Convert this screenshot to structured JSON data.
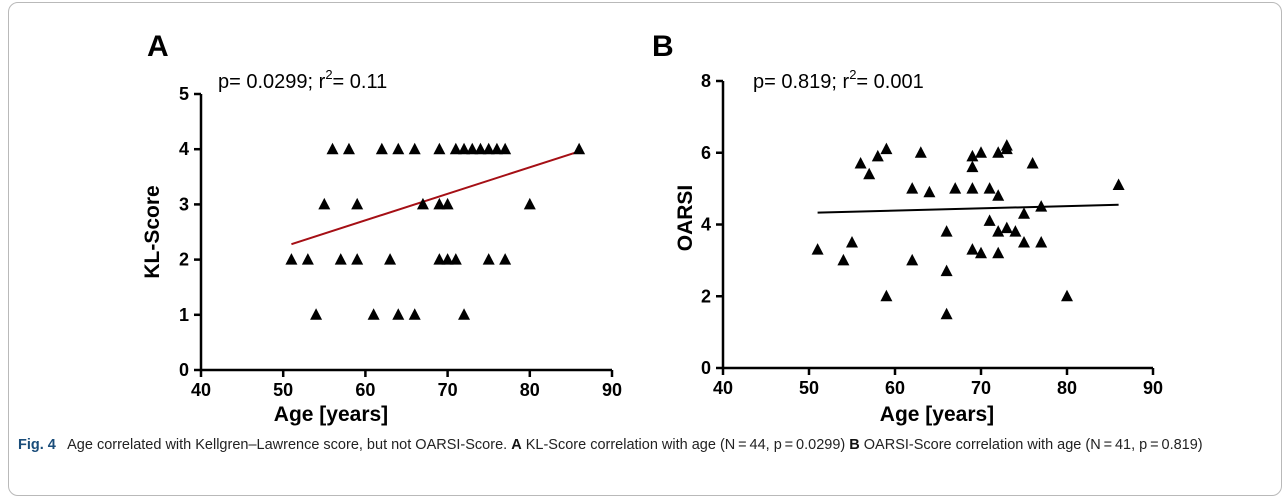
{
  "figure": {
    "caption": {
      "fig_label": "Fig. 4",
      "text_1": "Age correlated with Kellgren–Lawrence score, but not OARSI-Score.",
      "mark_a": "A",
      "text_2": "KL-Score correlation with age (N = 44, p = 0.0299)",
      "mark_b": "B",
      "text_3": "OARSI-Score correlation with age (N = 41, p = 0.819)"
    }
  },
  "chart_data": [
    {
      "panel": "A",
      "type": "scatter",
      "xlabel": "Age [years]",
      "ylabel": "KL-Score",
      "xlim": [
        40,
        90
      ],
      "ylim": [
        0,
        5
      ],
      "xticks": [
        40,
        50,
        60,
        70,
        80,
        90
      ],
      "yticks": [
        0,
        1,
        2,
        3,
        4,
        5
      ],
      "grid": false,
      "marker": "triangle",
      "annotation": {
        "p_text": "p= 0.0299; r",
        "sup": "2",
        "r2_text": "= 0.11"
      },
      "points": [
        [
          51,
          2
        ],
        [
          53,
          2
        ],
        [
          54,
          1
        ],
        [
          55,
          3
        ],
        [
          56,
          4
        ],
        [
          57,
          2
        ],
        [
          58,
          4
        ],
        [
          59,
          3
        ],
        [
          59,
          2
        ],
        [
          61,
          1
        ],
        [
          62,
          4
        ],
        [
          63,
          2
        ],
        [
          64,
          4
        ],
        [
          64,
          1
        ],
        [
          66,
          1
        ],
        [
          66,
          4
        ],
        [
          67,
          3
        ],
        [
          69,
          4
        ],
        [
          69,
          3
        ],
        [
          69,
          2
        ],
        [
          70,
          3
        ],
        [
          70,
          2
        ],
        [
          71,
          2
        ],
        [
          71,
          4
        ],
        [
          72,
          4
        ],
        [
          72,
          1
        ],
        [
          73,
          4
        ],
        [
          74,
          4
        ],
        [
          75,
          4
        ],
        [
          75,
          2
        ],
        [
          76,
          4
        ],
        [
          77,
          4
        ],
        [
          77,
          2
        ],
        [
          80,
          3
        ],
        [
          86,
          4
        ]
      ],
      "regression": {
        "x": [
          51,
          86
        ],
        "y": [
          2.28,
          3.96
        ],
        "color": "#a50f15"
      }
    },
    {
      "panel": "B",
      "type": "scatter",
      "xlabel": "Age [years]",
      "ylabel": "OARSI",
      "xlim": [
        40,
        90
      ],
      "ylim": [
        0,
        8
      ],
      "xticks": [
        40,
        50,
        60,
        70,
        80,
        90
      ],
      "yticks": [
        0,
        2,
        4,
        6,
        8
      ],
      "grid": false,
      "marker": "triangle",
      "annotation": {
        "p_text": "p= 0.819; r",
        "sup": "2",
        "r2_text": "= 0.001"
      },
      "points": [
        [
          51,
          3.3
        ],
        [
          54,
          3.0
        ],
        [
          55,
          3.5
        ],
        [
          56,
          5.7
        ],
        [
          57,
          5.4
        ],
        [
          58,
          5.9
        ],
        [
          59,
          6.1
        ],
        [
          59,
          2.0
        ],
        [
          62,
          5.0
        ],
        [
          62,
          3.0
        ],
        [
          63,
          6.0
        ],
        [
          64,
          4.9
        ],
        [
          66,
          3.8
        ],
        [
          66,
          2.7
        ],
        [
          66,
          1.5
        ],
        [
          67,
          5.0
        ],
        [
          69,
          5.9
        ],
        [
          69,
          5.6
        ],
        [
          69,
          5.0
        ],
        [
          69,
          3.3
        ],
        [
          70,
          6.0
        ],
        [
          70,
          3.2
        ],
        [
          71,
          5.0
        ],
        [
          71,
          4.1
        ],
        [
          72,
          6.0
        ],
        [
          72,
          4.8
        ],
        [
          72,
          3.8
        ],
        [
          72,
          3.2
        ],
        [
          73,
          6.1
        ],
        [
          73,
          6.2
        ],
        [
          73,
          3.9
        ],
        [
          74,
          3.8
        ],
        [
          75,
          4.3
        ],
        [
          75,
          3.5
        ],
        [
          76,
          5.7
        ],
        [
          77,
          4.5
        ],
        [
          77,
          3.5
        ],
        [
          80,
          2.0
        ],
        [
          86,
          5.1
        ]
      ],
      "regression": {
        "x": [
          51,
          86
        ],
        "y": [
          4.33,
          4.55
        ],
        "color": "#000000"
      }
    }
  ]
}
